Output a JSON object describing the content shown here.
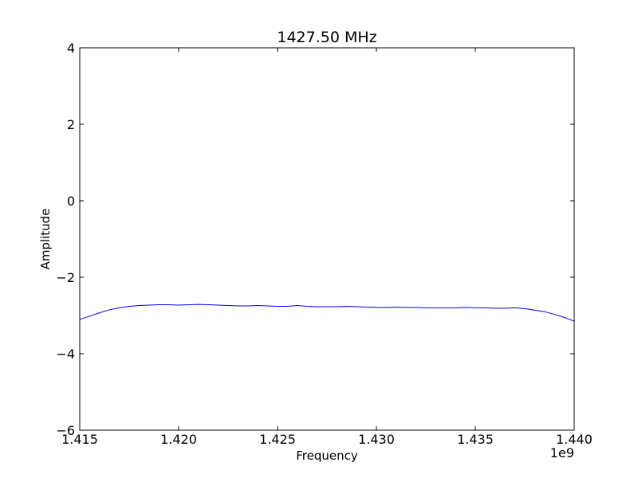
{
  "chart_data": {
    "type": "line",
    "title": "1427.50 MHz",
    "xlabel": "Frequency",
    "ylabel": "Amplitude",
    "x_offset_label": "1e9",
    "xlim": [
      1.415,
      1.44
    ],
    "ylim": [
      -6,
      4
    ],
    "x_ticks": [
      1.415,
      1.42,
      1.425,
      1.43,
      1.435,
      1.44
    ],
    "x_tick_labels": [
      "1.415",
      "1.420",
      "1.425",
      "1.430",
      "1.435",
      "1.440"
    ],
    "y_ticks": [
      -6,
      -4,
      -2,
      0,
      2,
      4
    ],
    "y_tick_labels": [
      "−6",
      "−4",
      "−2",
      "0",
      "2",
      "4"
    ],
    "grid": false,
    "legend": "none",
    "series": [
      {
        "color": "#0000ff",
        "x": [
          1.415,
          1.4155,
          1.416,
          1.4165,
          1.417,
          1.4175,
          1.418,
          1.4185,
          1.419,
          1.4195,
          1.42,
          1.4205,
          1.421,
          1.4215,
          1.422,
          1.4225,
          1.423,
          1.4235,
          1.424,
          1.4245,
          1.425,
          1.4255,
          1.426,
          1.4265,
          1.427,
          1.4275,
          1.428,
          1.4285,
          1.429,
          1.4295,
          1.43,
          1.4305,
          1.431,
          1.4315,
          1.432,
          1.4325,
          1.433,
          1.4335,
          1.434,
          1.4345,
          1.435,
          1.4355,
          1.436,
          1.4365,
          1.437,
          1.4375,
          1.438,
          1.4385,
          1.439,
          1.4395,
          1.44
        ],
        "y": [
          -3.1,
          -3.02,
          -2.93,
          -2.85,
          -2.8,
          -2.76,
          -2.74,
          -2.73,
          -2.72,
          -2.72,
          -2.73,
          -2.72,
          -2.71,
          -2.72,
          -2.73,
          -2.74,
          -2.75,
          -2.75,
          -2.74,
          -2.75,
          -2.76,
          -2.76,
          -2.74,
          -2.76,
          -2.77,
          -2.77,
          -2.77,
          -2.76,
          -2.77,
          -2.78,
          -2.79,
          -2.79,
          -2.78,
          -2.79,
          -2.79,
          -2.8,
          -2.8,
          -2.8,
          -2.8,
          -2.79,
          -2.8,
          -2.8,
          -2.81,
          -2.81,
          -2.8,
          -2.82,
          -2.86,
          -2.9,
          -2.97,
          -3.05,
          -3.15
        ]
      }
    ]
  }
}
